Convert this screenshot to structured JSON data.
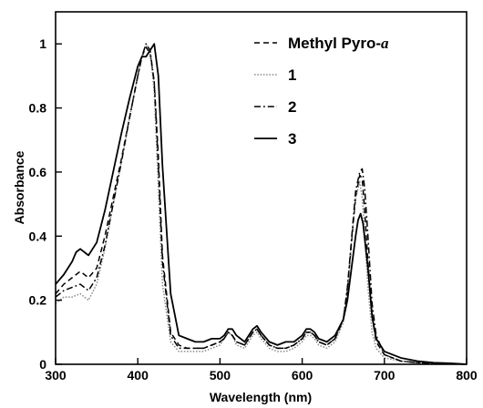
{
  "chart_data": {
    "type": "line",
    "title": "",
    "xlabel": "Wavelength (nm)",
    "ylabel": "Absorbance",
    "xlim": [
      300,
      800
    ],
    "ylim": [
      0,
      1.1
    ],
    "xticks": [
      "300",
      "400",
      "500",
      "600",
      "700",
      "800"
    ],
    "yticks": [
      "0",
      "0.2",
      "0.4",
      "0.6",
      "0.8",
      "1"
    ],
    "grid": false,
    "legend_placement": "top-right",
    "series": [
      {
        "name": "Methyl Pyro-",
        "name_suffix": "a",
        "style": "dashed",
        "color": "#000000",
        "x": [
          300,
          310,
          320,
          330,
          340,
          350,
          360,
          370,
          380,
          390,
          400,
          405,
          410,
          415,
          420,
          425,
          430,
          440,
          450,
          460,
          470,
          480,
          490,
          500,
          505,
          510,
          515,
          520,
          530,
          540,
          545,
          550,
          560,
          570,
          580,
          590,
          600,
          605,
          610,
          615,
          620,
          630,
          640,
          650,
          655,
          660,
          665,
          670,
          673,
          676,
          680,
          685,
          690,
          700,
          720,
          740,
          760,
          780,
          800
        ],
        "y": [
          0.22,
          0.25,
          0.27,
          0.29,
          0.27,
          0.3,
          0.4,
          0.52,
          0.64,
          0.77,
          0.9,
          0.96,
          0.99,
          0.97,
          0.88,
          0.65,
          0.34,
          0.1,
          0.06,
          0.05,
          0.05,
          0.05,
          0.06,
          0.07,
          0.08,
          0.1,
          0.09,
          0.07,
          0.06,
          0.1,
          0.11,
          0.09,
          0.06,
          0.05,
          0.05,
          0.06,
          0.08,
          0.1,
          0.1,
          0.09,
          0.07,
          0.06,
          0.08,
          0.14,
          0.23,
          0.38,
          0.52,
          0.59,
          0.58,
          0.48,
          0.32,
          0.15,
          0.07,
          0.03,
          0.01,
          0.005,
          0.003,
          0.002,
          0.0
        ]
      },
      {
        "name": "1",
        "style": "dotted",
        "color": "#888888",
        "x": [
          300,
          310,
          320,
          330,
          340,
          350,
          360,
          370,
          380,
          390,
          400,
          405,
          410,
          415,
          420,
          425,
          430,
          440,
          450,
          460,
          470,
          480,
          490,
          500,
          505,
          510,
          515,
          520,
          530,
          540,
          545,
          550,
          560,
          570,
          580,
          590,
          600,
          605,
          610,
          615,
          620,
          630,
          640,
          650,
          655,
          660,
          665,
          670,
          673,
          676,
          680,
          685,
          690,
          700,
          720,
          740,
          760,
          780,
          800
        ],
        "y": [
          0.19,
          0.21,
          0.21,
          0.22,
          0.2,
          0.25,
          0.36,
          0.5,
          0.63,
          0.77,
          0.9,
          0.96,
          1.0,
          0.98,
          0.85,
          0.55,
          0.25,
          0.07,
          0.04,
          0.04,
          0.04,
          0.04,
          0.05,
          0.06,
          0.08,
          0.1,
          0.09,
          0.06,
          0.05,
          0.09,
          0.1,
          0.08,
          0.05,
          0.04,
          0.04,
          0.05,
          0.07,
          0.09,
          0.09,
          0.08,
          0.06,
          0.05,
          0.07,
          0.13,
          0.22,
          0.38,
          0.52,
          0.57,
          0.52,
          0.4,
          0.24,
          0.1,
          0.05,
          0.02,
          0.01,
          0.005,
          0.003,
          0.002,
          0.0
        ]
      },
      {
        "name": "2",
        "style": "dashdot",
        "color": "#000000",
        "x": [
          300,
          310,
          320,
          330,
          340,
          350,
          360,
          370,
          380,
          390,
          400,
          405,
          410,
          415,
          420,
          425,
          430,
          440,
          450,
          460,
          470,
          480,
          490,
          500,
          505,
          510,
          515,
          520,
          530,
          540,
          545,
          550,
          560,
          570,
          580,
          590,
          600,
          605,
          610,
          615,
          620,
          630,
          640,
          650,
          655,
          660,
          665,
          670,
          673,
          676,
          680,
          685,
          690,
          700,
          720,
          740,
          760,
          780,
          800
        ],
        "y": [
          0.21,
          0.23,
          0.24,
          0.25,
          0.23,
          0.27,
          0.37,
          0.5,
          0.63,
          0.77,
          0.9,
          0.96,
          1.0,
          0.98,
          0.88,
          0.62,
          0.32,
          0.09,
          0.05,
          0.05,
          0.05,
          0.05,
          0.06,
          0.07,
          0.08,
          0.1,
          0.09,
          0.07,
          0.06,
          0.1,
          0.11,
          0.09,
          0.06,
          0.05,
          0.05,
          0.06,
          0.08,
          0.1,
          0.1,
          0.09,
          0.07,
          0.06,
          0.08,
          0.14,
          0.24,
          0.39,
          0.54,
          0.6,
          0.61,
          0.55,
          0.4,
          0.19,
          0.09,
          0.03,
          0.01,
          0.005,
          0.003,
          0.002,
          0.0
        ]
      },
      {
        "name": "3",
        "style": "solid",
        "color": "#000000",
        "x": [
          300,
          310,
          320,
          325,
          330,
          340,
          350,
          360,
          370,
          380,
          390,
          400,
          405,
          410,
          415,
          420,
          425,
          430,
          440,
          450,
          460,
          470,
          480,
          490,
          500,
          505,
          510,
          515,
          520,
          530,
          540,
          545,
          550,
          560,
          570,
          580,
          590,
          600,
          605,
          610,
          615,
          620,
          630,
          640,
          650,
          655,
          660,
          665,
          668,
          671,
          674,
          680,
          685,
          690,
          700,
          720,
          740,
          760,
          780,
          800
        ],
        "y": [
          0.25,
          0.28,
          0.32,
          0.35,
          0.36,
          0.34,
          0.38,
          0.48,
          0.6,
          0.72,
          0.83,
          0.93,
          0.96,
          0.96,
          0.98,
          1.0,
          0.9,
          0.62,
          0.22,
          0.09,
          0.08,
          0.07,
          0.07,
          0.08,
          0.08,
          0.09,
          0.11,
          0.11,
          0.09,
          0.07,
          0.11,
          0.12,
          0.1,
          0.07,
          0.06,
          0.07,
          0.07,
          0.09,
          0.11,
          0.11,
          0.1,
          0.08,
          0.07,
          0.09,
          0.14,
          0.2,
          0.3,
          0.4,
          0.45,
          0.47,
          0.44,
          0.3,
          0.15,
          0.08,
          0.04,
          0.02,
          0.01,
          0.005,
          0.003,
          0.0
        ]
      }
    ]
  }
}
